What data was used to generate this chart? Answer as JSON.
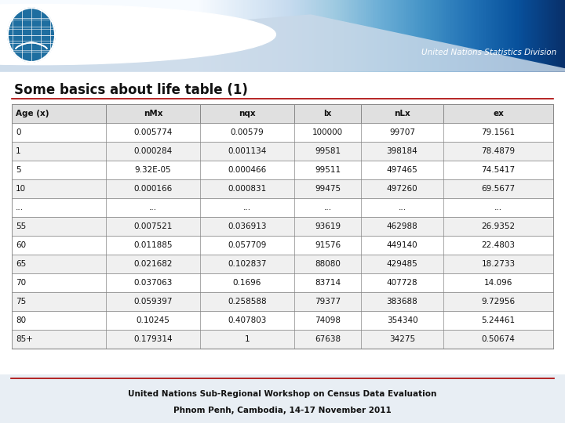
{
  "title": "Some basics about life table (1)",
  "header": [
    "Age (x)",
    "nMx",
    "nqx",
    "lx",
    "nLx",
    "ex"
  ],
  "rows": [
    [
      "0",
      "0.005774",
      "0.00579",
      "100000",
      "99707",
      "79.1561"
    ],
    [
      "1",
      "0.000284",
      "0.001134",
      "99581",
      "398184",
      "78.4879"
    ],
    [
      "5",
      "9.32E-05",
      "0.000466",
      "99511",
      "497465",
      "74.5417"
    ],
    [
      "10",
      "0.000166",
      "0.000831",
      "99475",
      "497260",
      "69.5677"
    ],
    [
      "...",
      "...",
      "...",
      "...",
      "...",
      "..."
    ],
    [
      "55",
      "0.007521",
      "0.036913",
      "93619",
      "462988",
      "26.9352"
    ],
    [
      "60",
      "0.011885",
      "0.057709",
      "91576",
      "449140",
      "22.4803"
    ],
    [
      "65",
      "0.021682",
      "0.102837",
      "88080",
      "429485",
      "18.2733"
    ],
    [
      "70",
      "0.037063",
      "0.1696",
      "83714",
      "407728",
      "14.096"
    ],
    [
      "75",
      "0.059397",
      "0.258588",
      "79377",
      "383688",
      "9.72956"
    ],
    [
      "80",
      "0.10245",
      "0.407803",
      "74098",
      "354340",
      "5.24461"
    ],
    [
      "85+",
      "0.179314",
      "1",
      "67638",
      "34275",
      "0.50674"
    ]
  ],
  "footer_line1": "United Nations Sub-Regional Workshop on Census Data Evaluation",
  "footer_line2": "Phnom Penh, Cambodia, 14-17 November 2011",
  "banner_color_left": "#0077bb",
  "banner_color_right": "#004488",
  "wave_color": "#c8d8e8",
  "bg_main_color": "#e8eef4",
  "table_bg": "#f4f4f4",
  "header_row_bg": "#e0e0e0",
  "row_white": "#ffffff",
  "row_gray": "#f0f0f0",
  "border_color": "#888888",
  "title_color": "#111111",
  "footer_color": "#111111",
  "red_line_color": "#aa0000",
  "un_text_color": "#5599cc"
}
